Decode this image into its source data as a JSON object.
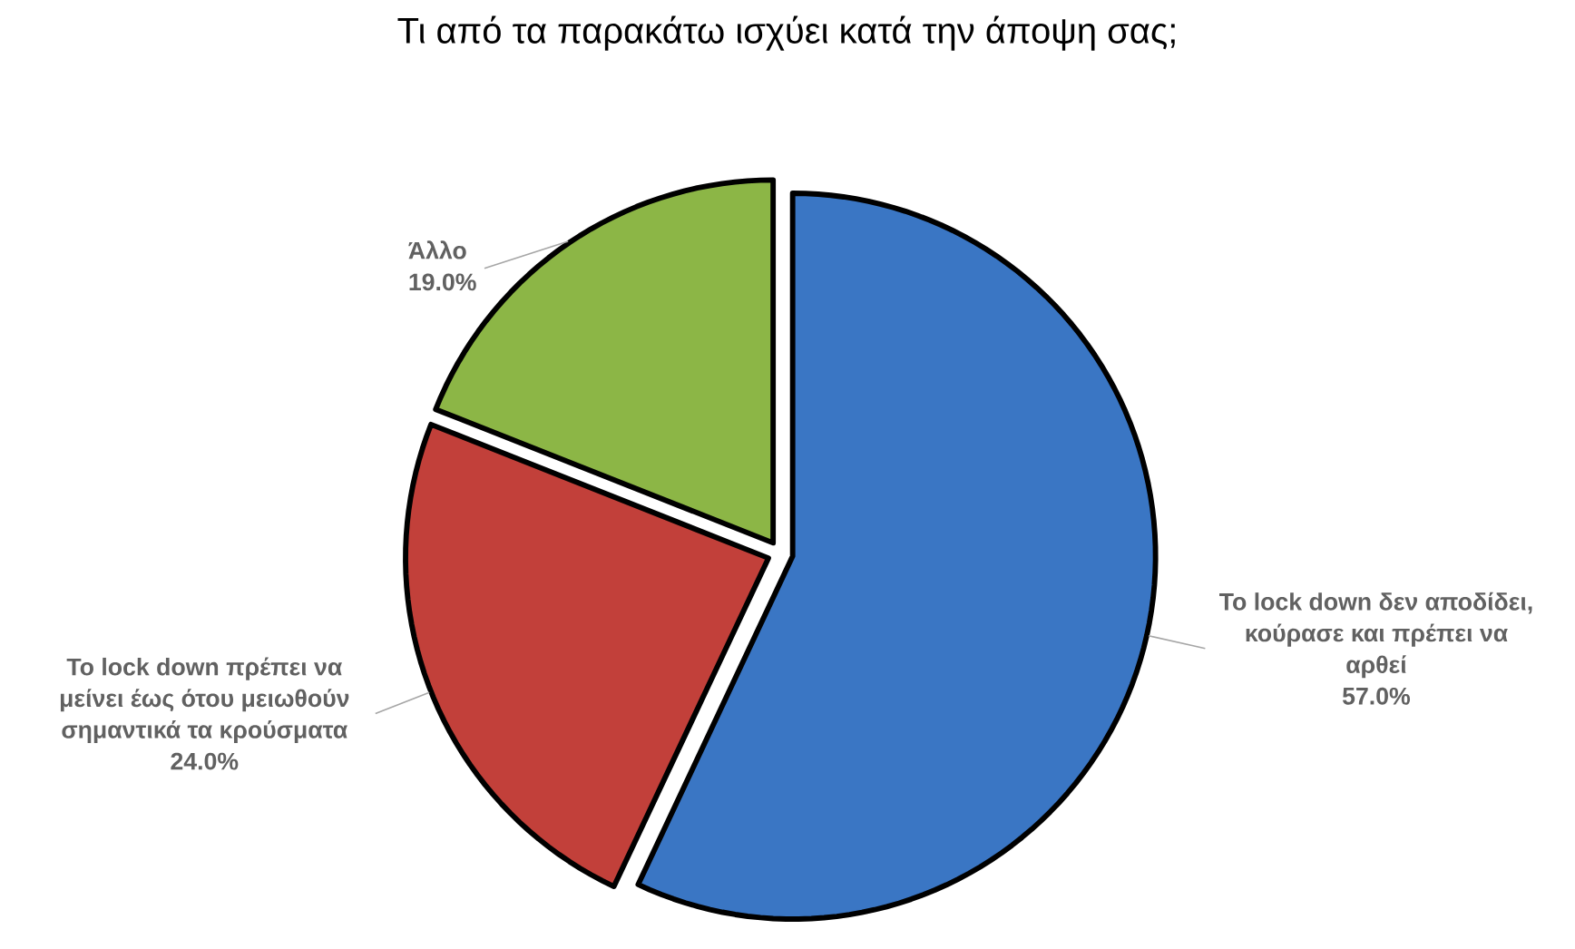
{
  "chart_data": {
    "type": "pie",
    "title": "Τι από τα παρακάτω ισχύει κατά την άποψη σας;",
    "categories": [
      "To lock down δεν αποδίδει, κούρασε και πρέπει να αρθεί",
      "To lock down πρέπει να μείνει έως ότου μειωθούν σημαντικά τα κρούσματα",
      "Άλλο"
    ],
    "values": [
      57.0,
      24.0,
      19.0
    ],
    "value_labels": [
      "57.0%",
      "24.0%",
      "19.0%"
    ],
    "colors": [
      "#3a76c4",
      "#c2403a",
      "#8cb646"
    ]
  }
}
